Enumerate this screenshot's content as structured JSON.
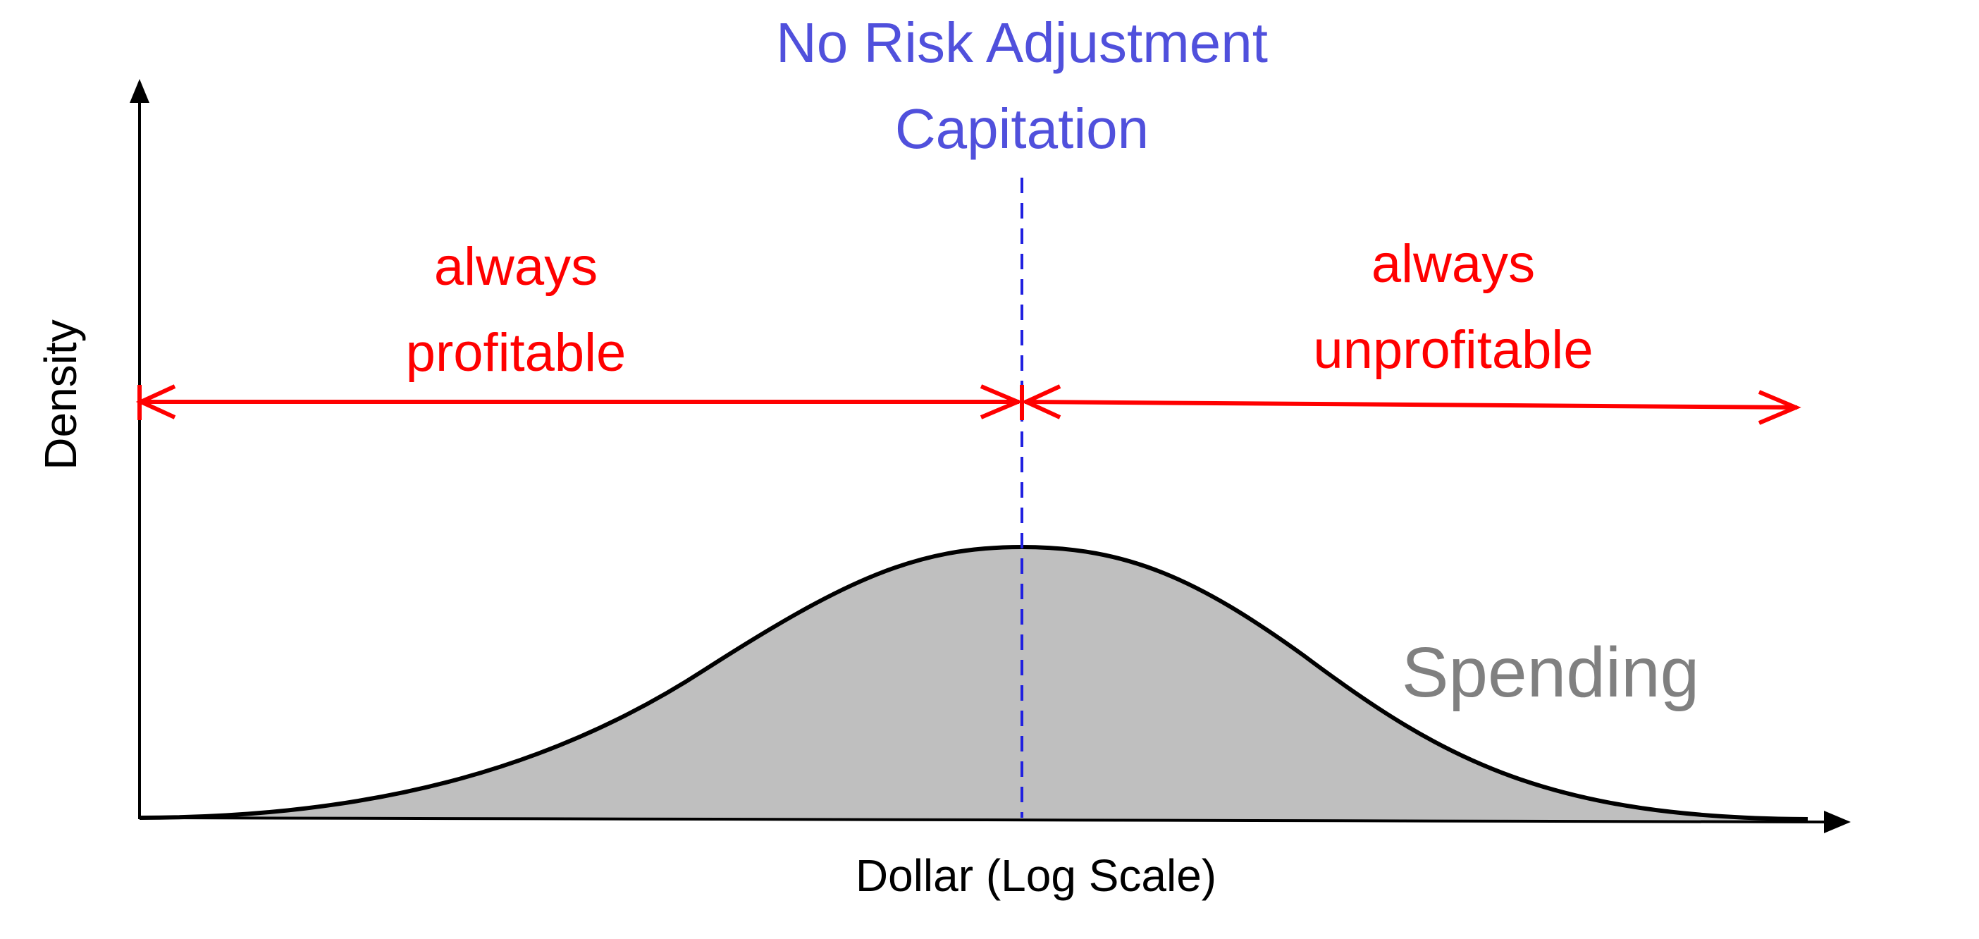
{
  "title": {
    "line1": "No Risk Adjustment",
    "line2": "Capitation",
    "color": "#5050dc"
  },
  "labels": {
    "left_line1": "always",
    "left_line2": "profitable",
    "right_line1": "always",
    "right_line2": "unprofitable",
    "color": "#ff0000"
  },
  "axes": {
    "xlabel": "Dollar (Log Scale)",
    "ylabel": "Density",
    "color": "#000000"
  },
  "curve": {
    "label": "Spending",
    "label_color": "#808080",
    "fill_color": "#bfbfbf",
    "stroke_color": "#000000",
    "peak_at": "Capitation"
  },
  "capitation_line_color": "#2020e0"
}
